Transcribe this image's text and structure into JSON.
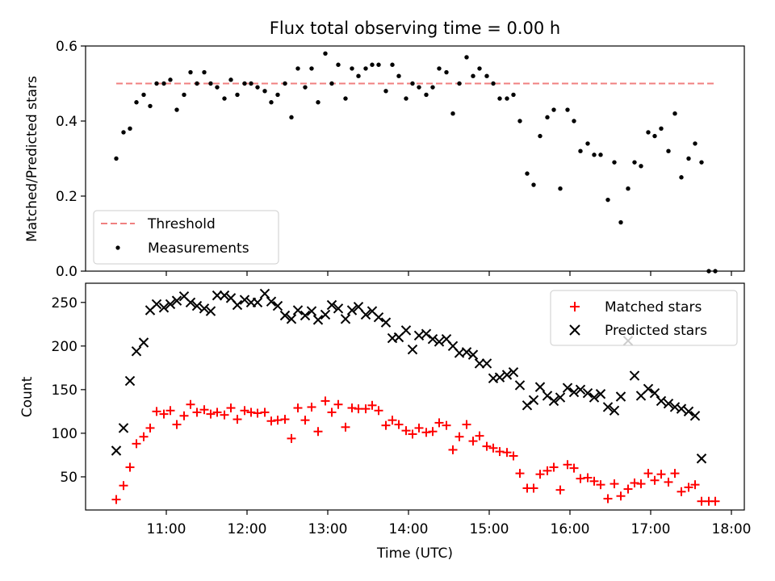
{
  "chart_data": [
    {
      "type": "scatter",
      "title": "Flux total observing time = 0.00 h",
      "xlabel": "",
      "ylabel": "Matched/Predicted stars",
      "xlim": [
        10.0,
        18.16
      ],
      "ylim": [
        0.0,
        0.6
      ],
      "yticks": [
        "0.0",
        "0.2",
        "0.4",
        "0.6"
      ],
      "legend_position": "lower-left",
      "series": [
        {
          "name": "Threshold",
          "style": "dashed-line",
          "color": "#f08080",
          "points": [
            [
              10.38,
              0.5
            ],
            [
              17.78,
              0.5
            ]
          ]
        },
        {
          "name": "Measurements",
          "style": "dot",
          "color": "#000000",
          "points": [
            [
              10.38,
              0.3
            ],
            [
              10.47,
              0.37
            ],
            [
              10.55,
              0.38
            ],
            [
              10.63,
              0.45
            ],
            [
              10.72,
              0.47
            ],
            [
              10.8,
              0.44
            ],
            [
              10.88,
              0.5
            ],
            [
              10.97,
              0.5
            ],
            [
              11.05,
              0.51
            ],
            [
              11.13,
              0.43
            ],
            [
              11.22,
              0.47
            ],
            [
              11.3,
              0.53
            ],
            [
              11.38,
              0.5
            ],
            [
              11.47,
              0.53
            ],
            [
              11.55,
              0.5
            ],
            [
              11.63,
              0.49
            ],
            [
              11.72,
              0.46
            ],
            [
              11.8,
              0.51
            ],
            [
              11.88,
              0.47
            ],
            [
              11.97,
              0.5
            ],
            [
              12.05,
              0.5
            ],
            [
              12.13,
              0.49
            ],
            [
              12.22,
              0.48
            ],
            [
              12.3,
              0.45
            ],
            [
              12.38,
              0.47
            ],
            [
              12.47,
              0.5
            ],
            [
              12.55,
              0.41
            ],
            [
              12.63,
              0.54
            ],
            [
              12.72,
              0.49
            ],
            [
              12.8,
              0.54
            ],
            [
              12.88,
              0.45
            ],
            [
              12.97,
              0.58
            ],
            [
              13.05,
              0.5
            ],
            [
              13.13,
              0.55
            ],
            [
              13.22,
              0.46
            ],
            [
              13.3,
              0.54
            ],
            [
              13.38,
              0.52
            ],
            [
              13.47,
              0.54
            ],
            [
              13.55,
              0.55
            ],
            [
              13.63,
              0.55
            ],
            [
              13.72,
              0.48
            ],
            [
              13.8,
              0.55
            ],
            [
              13.88,
              0.52
            ],
            [
              13.97,
              0.46
            ],
            [
              14.05,
              0.5
            ],
            [
              14.13,
              0.49
            ],
            [
              14.22,
              0.47
            ],
            [
              14.3,
              0.49
            ],
            [
              14.38,
              0.54
            ],
            [
              14.47,
              0.53
            ],
            [
              14.55,
              0.42
            ],
            [
              14.63,
              0.5
            ],
            [
              14.72,
              0.57
            ],
            [
              14.8,
              0.52
            ],
            [
              14.88,
              0.54
            ],
            [
              14.97,
              0.52
            ],
            [
              15.05,
              0.5
            ],
            [
              15.13,
              0.46
            ],
            [
              15.22,
              0.46
            ],
            [
              15.3,
              0.47
            ],
            [
              15.38,
              0.4
            ],
            [
              15.47,
              0.26
            ],
            [
              15.55,
              0.23
            ],
            [
              15.63,
              0.36
            ],
            [
              15.72,
              0.41
            ],
            [
              15.8,
              0.43
            ],
            [
              15.88,
              0.22
            ],
            [
              15.97,
              0.43
            ],
            [
              16.05,
              0.4
            ],
            [
              16.13,
              0.32
            ],
            [
              16.22,
              0.34
            ],
            [
              16.3,
              0.31
            ],
            [
              16.38,
              0.31
            ],
            [
              16.47,
              0.19
            ],
            [
              16.55,
              0.29
            ],
            [
              16.63,
              0.13
            ],
            [
              16.72,
              0.22
            ],
            [
              16.8,
              0.29
            ],
            [
              16.88,
              0.28
            ],
            [
              16.97,
              0.37
            ],
            [
              17.05,
              0.36
            ],
            [
              17.13,
              0.38
            ],
            [
              17.22,
              0.32
            ],
            [
              17.3,
              0.42
            ],
            [
              17.38,
              0.25
            ],
            [
              17.47,
              0.3
            ],
            [
              17.55,
              0.34
            ],
            [
              17.63,
              0.29
            ],
            [
              17.72,
              0.0
            ],
            [
              17.8,
              0.0
            ]
          ]
        }
      ]
    },
    {
      "type": "scatter",
      "title": "",
      "xlabel": "Time (UTC)",
      "ylabel": "Count",
      "xlim": [
        10.0,
        18.16
      ],
      "ylim": [
        12,
        272
      ],
      "xticks": [
        "11:00",
        "12:00",
        "13:00",
        "14:00",
        "15:00",
        "16:00",
        "17:00",
        "18:00"
      ],
      "yticks": [
        "50",
        "100",
        "150",
        "200",
        "250"
      ],
      "legend_position": "top-right",
      "series": [
        {
          "name": "Matched stars",
          "marker": "plus",
          "color": "#ff0000",
          "points": [
            [
              10.38,
              24
            ],
            [
              10.47,
              40
            ],
            [
              10.55,
              61
            ],
            [
              10.63,
              88
            ],
            [
              10.72,
              96
            ],
            [
              10.8,
              106
            ],
            [
              10.88,
              125
            ],
            [
              10.97,
              122
            ],
            [
              11.05,
              126
            ],
            [
              11.13,
              110
            ],
            [
              11.22,
              120
            ],
            [
              11.3,
              133
            ],
            [
              11.38,
              124
            ],
            [
              11.47,
              127
            ],
            [
              11.55,
              122
            ],
            [
              11.63,
              124
            ],
            [
              11.72,
              121
            ],
            [
              11.8,
              129
            ],
            [
              11.88,
              116
            ],
            [
              11.97,
              126
            ],
            [
              12.05,
              124
            ],
            [
              12.13,
              123
            ],
            [
              12.22,
              124
            ],
            [
              12.3,
              114
            ],
            [
              12.38,
              115
            ],
            [
              12.47,
              116
            ],
            [
              12.55,
              94
            ],
            [
              12.63,
              129
            ],
            [
              12.72,
              115
            ],
            [
              12.8,
              130
            ],
            [
              12.88,
              102
            ],
            [
              12.97,
              137
            ],
            [
              13.05,
              124
            ],
            [
              13.13,
              133
            ],
            [
              13.22,
              107
            ],
            [
              13.3,
              129
            ],
            [
              13.38,
              128
            ],
            [
              13.47,
              128
            ],
            [
              13.55,
              132
            ],
            [
              13.63,
              126
            ],
            [
              13.72,
              109
            ],
            [
              13.8,
              115
            ],
            [
              13.88,
              110
            ],
            [
              13.97,
              103
            ],
            [
              14.05,
              99
            ],
            [
              14.13,
              106
            ],
            [
              14.22,
              101
            ],
            [
              14.3,
              102
            ],
            [
              14.38,
              112
            ],
            [
              14.47,
              109
            ],
            [
              14.55,
              81
            ],
            [
              14.63,
              96
            ],
            [
              14.72,
              110
            ],
            [
              14.8,
              91
            ],
            [
              14.88,
              97
            ],
            [
              14.97,
              85
            ],
            [
              15.05,
              83
            ],
            [
              15.13,
              79
            ],
            [
              15.22,
              78
            ],
            [
              15.3,
              74
            ],
            [
              15.38,
              54
            ],
            [
              15.47,
              37
            ],
            [
              15.55,
              37
            ],
            [
              15.63,
              53
            ],
            [
              15.72,
              57
            ],
            [
              15.8,
              61
            ],
            [
              15.88,
              35
            ],
            [
              15.97,
              64
            ],
            [
              16.05,
              60
            ],
            [
              16.13,
              48
            ],
            [
              16.22,
              49
            ],
            [
              16.3,
              45
            ],
            [
              16.38,
              41
            ],
            [
              16.47,
              25
            ],
            [
              16.55,
              42
            ],
            [
              16.63,
              28
            ],
            [
              16.72,
              36
            ],
            [
              16.8,
              43
            ],
            [
              16.88,
              42
            ],
            [
              16.97,
              54
            ],
            [
              17.05,
              46
            ],
            [
              17.13,
              53
            ],
            [
              17.22,
              44
            ],
            [
              17.3,
              54
            ],
            [
              17.38,
              33
            ],
            [
              17.47,
              38
            ],
            [
              17.55,
              41
            ],
            [
              17.63,
              22
            ],
            [
              17.72,
              22
            ],
            [
              17.8,
              22
            ]
          ]
        },
        {
          "name": "Predicted stars",
          "marker": "x",
          "color": "#000000",
          "points": [
            [
              10.38,
              80
            ],
            [
              10.47,
              106
            ],
            [
              10.55,
              160
            ],
            [
              10.63,
              194
            ],
            [
              10.72,
              204
            ],
            [
              10.8,
              241
            ],
            [
              10.88,
              248
            ],
            [
              10.97,
              244
            ],
            [
              11.05,
              248
            ],
            [
              11.13,
              252
            ],
            [
              11.22,
              257
            ],
            [
              11.3,
              250
            ],
            [
              11.38,
              246
            ],
            [
              11.47,
              243
            ],
            [
              11.55,
              240
            ],
            [
              11.63,
              258
            ],
            [
              11.72,
              258
            ],
            [
              11.8,
              255
            ],
            [
              11.88,
              247
            ],
            [
              11.97,
              253
            ],
            [
              12.05,
              250
            ],
            [
              12.13,
              250
            ],
            [
              12.22,
              260
            ],
            [
              12.3,
              251
            ],
            [
              12.38,
              246
            ],
            [
              12.47,
              235
            ],
            [
              12.55,
              231
            ],
            [
              12.63,
              241
            ],
            [
              12.72,
              235
            ],
            [
              12.8,
              240
            ],
            [
              12.88,
              230
            ],
            [
              12.97,
              236
            ],
            [
              13.05,
              247
            ],
            [
              13.13,
              243
            ],
            [
              13.22,
              231
            ],
            [
              13.3,
              241
            ],
            [
              13.38,
              245
            ],
            [
              13.47,
              236
            ],
            [
              13.55,
              240
            ],
            [
              13.63,
              233
            ],
            [
              13.72,
              227
            ],
            [
              13.8,
              209
            ],
            [
              13.88,
              210
            ],
            [
              13.97,
              218
            ],
            [
              14.05,
              196
            ],
            [
              14.13,
              212
            ],
            [
              14.22,
              214
            ],
            [
              14.3,
              208
            ],
            [
              14.38,
              205
            ],
            [
              14.47,
              208
            ],
            [
              14.55,
              200
            ],
            [
              14.63,
              192
            ],
            [
              14.72,
              193
            ],
            [
              14.8,
              190
            ],
            [
              14.88,
              180
            ],
            [
              14.97,
              180
            ],
            [
              15.05,
              163
            ],
            [
              15.13,
              164
            ],
            [
              15.22,
              167
            ],
            [
              15.3,
              170
            ],
            [
              15.38,
              155
            ],
            [
              15.47,
              132
            ],
            [
              15.55,
              138
            ],
            [
              15.63,
              153
            ],
            [
              15.72,
              143
            ],
            [
              15.8,
              137
            ],
            [
              15.88,
              141
            ],
            [
              15.97,
              152
            ],
            [
              16.05,
              147
            ],
            [
              16.13,
              150
            ],
            [
              16.22,
              146
            ],
            [
              16.3,
              141
            ],
            [
              16.38,
              145
            ],
            [
              16.47,
              130
            ],
            [
              16.55,
              126
            ],
            [
              16.63,
              142
            ],
            [
              16.72,
              206
            ],
            [
              16.8,
              166
            ],
            [
              16.88,
              143
            ],
            [
              16.97,
              151
            ],
            [
              17.05,
              146
            ],
            [
              17.13,
              137
            ],
            [
              17.22,
              134
            ],
            [
              17.3,
              130
            ],
            [
              17.38,
              128
            ],
            [
              17.47,
              125
            ],
            [
              17.55,
              120
            ],
            [
              17.63,
              71
            ]
          ]
        }
      ]
    }
  ]
}
